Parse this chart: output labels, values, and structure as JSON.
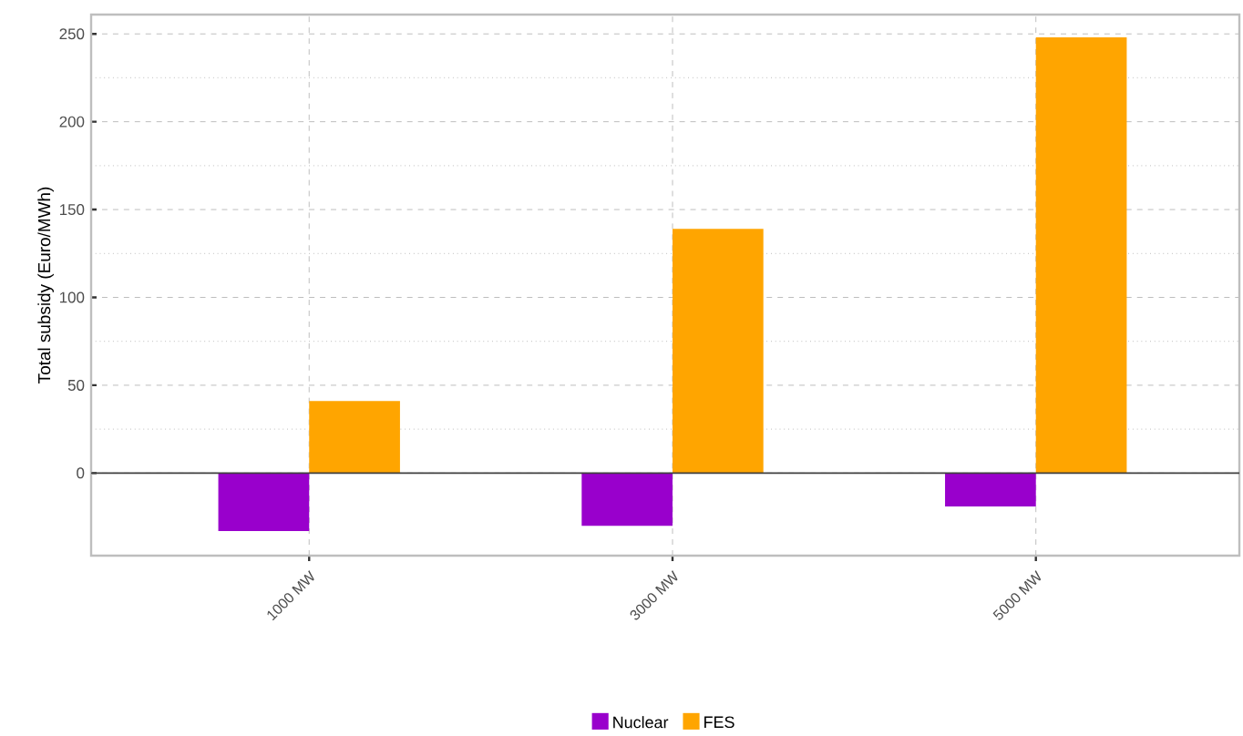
{
  "chart_data": {
    "type": "bar",
    "ylabel": "Total subsidy (Euro/MWh)",
    "categories": [
      "1000 MW",
      "3000 MW",
      "5000 MW"
    ],
    "series": [
      {
        "name": "Nuclear",
        "color": "#9900cc",
        "values": [
          -33,
          -30,
          -19
        ]
      },
      {
        "name": "FES",
        "color": "#ffa500",
        "values": [
          41,
          139,
          248
        ]
      }
    ],
    "ylim": [
      -47,
      261
    ],
    "yticks": [
      0,
      50,
      100,
      150,
      200,
      250
    ],
    "grid": true,
    "legend": "bottom"
  }
}
